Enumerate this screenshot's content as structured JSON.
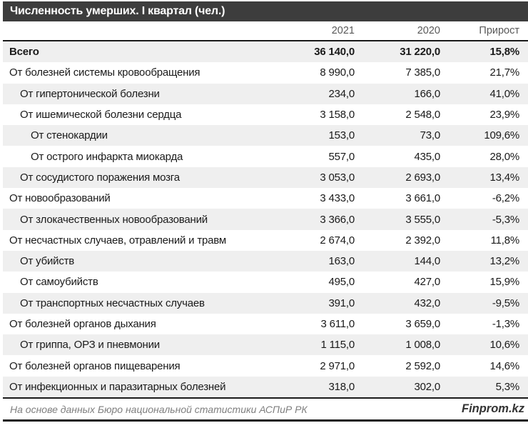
{
  "title": "Численность умерших. I квартал (чел.)",
  "footer": {
    "source": "На основе данных Бюро национальной статистики АСПиР РК",
    "brand": "Finprom.kz"
  },
  "colors": {
    "title_bar_bg": "#3d3d3d",
    "title_text": "#ffffff",
    "stripe": "#efefef",
    "rule_line": "#1a1a1a",
    "column_header_text": "#595959",
    "source_text": "#7f7f7f"
  },
  "chart_data": {
    "type": "table",
    "title": "Численность умерших. I квартал (чел.)",
    "columns": [
      "2021",
      "2020",
      "Прирост"
    ],
    "rows": [
      {
        "label": "Всего",
        "indent": 0,
        "bold": true,
        "values": [
          "36 140,0",
          "31 220,0",
          "15,8%"
        ],
        "numeric": [
          36140.0,
          31220.0,
          15.8
        ]
      },
      {
        "label": "От болезней системы кровообращения",
        "indent": 0,
        "bold": false,
        "values": [
          "8 990,0",
          "7 385,0",
          "21,7%"
        ],
        "numeric": [
          8990.0,
          7385.0,
          21.7
        ]
      },
      {
        "label": "От гипертонической болезни",
        "indent": 1,
        "bold": false,
        "values": [
          "234,0",
          "166,0",
          "41,0%"
        ],
        "numeric": [
          234.0,
          166.0,
          41.0
        ]
      },
      {
        "label": "От ишемической болезни сердца",
        "indent": 1,
        "bold": false,
        "values": [
          "3 158,0",
          "2 548,0",
          "23,9%"
        ],
        "numeric": [
          3158.0,
          2548.0,
          23.9
        ]
      },
      {
        "label": "От стенокардии",
        "indent": 2,
        "bold": false,
        "values": [
          "153,0",
          "73,0",
          "109,6%"
        ],
        "numeric": [
          153.0,
          73.0,
          109.6
        ]
      },
      {
        "label": "От острого инфаркта миокарда",
        "indent": 2,
        "bold": false,
        "values": [
          "557,0",
          "435,0",
          "28,0%"
        ],
        "numeric": [
          557.0,
          435.0,
          28.0
        ]
      },
      {
        "label": "От сосудистого поражения мозга",
        "indent": 1,
        "bold": false,
        "values": [
          "3 053,0",
          "2 693,0",
          "13,4%"
        ],
        "numeric": [
          3053.0,
          2693.0,
          13.4
        ]
      },
      {
        "label": "От новообразований",
        "indent": 0,
        "bold": false,
        "values": [
          "3 433,0",
          "3 661,0",
          "-6,2%"
        ],
        "numeric": [
          3433.0,
          3661.0,
          -6.2
        ]
      },
      {
        "label": "От злокачественных новообразований",
        "indent": 1,
        "bold": false,
        "values": [
          "3 366,0",
          "3 555,0",
          "-5,3%"
        ],
        "numeric": [
          3366.0,
          3555.0,
          -5.3
        ]
      },
      {
        "label": "От несчастных случаев, отравлений и травм",
        "indent": 0,
        "bold": false,
        "values": [
          "2 674,0",
          "2 392,0",
          "11,8%"
        ],
        "numeric": [
          2674.0,
          2392.0,
          11.8
        ]
      },
      {
        "label": "От убийств",
        "indent": 1,
        "bold": false,
        "values": [
          "163,0",
          "144,0",
          "13,2%"
        ],
        "numeric": [
          163.0,
          144.0,
          13.2
        ]
      },
      {
        "label": "От самоубийств",
        "indent": 1,
        "bold": false,
        "values": [
          "495,0",
          "427,0",
          "15,9%"
        ],
        "numeric": [
          495.0,
          427.0,
          15.9
        ]
      },
      {
        "label": "От транспортных несчастных случаев",
        "indent": 1,
        "bold": false,
        "values": [
          "391,0",
          "432,0",
          "-9,5%"
        ],
        "numeric": [
          391.0,
          432.0,
          -9.5
        ]
      },
      {
        "label": "От болезней органов дыхания",
        "indent": 0,
        "bold": false,
        "values": [
          "3 611,0",
          "3 659,0",
          "-1,3%"
        ],
        "numeric": [
          3611.0,
          3659.0,
          -1.3
        ]
      },
      {
        "label": "От гриппа, ОРЗ и пневмонии",
        "indent": 1,
        "bold": false,
        "values": [
          "1 115,0",
          "1 008,0",
          "10,6%"
        ],
        "numeric": [
          1115.0,
          1008.0,
          10.6
        ]
      },
      {
        "label": "От болезней органов пищеварения",
        "indent": 0,
        "bold": false,
        "values": [
          "2 971,0",
          "2 592,0",
          "14,6%"
        ],
        "numeric": [
          2971.0,
          2592.0,
          14.6
        ]
      },
      {
        "label": "От инфекционных и паразитарных болезней",
        "indent": 0,
        "bold": false,
        "values": [
          "318,0",
          "302,0",
          "5,3%"
        ],
        "numeric": [
          318.0,
          302.0,
          5.3
        ]
      }
    ]
  }
}
